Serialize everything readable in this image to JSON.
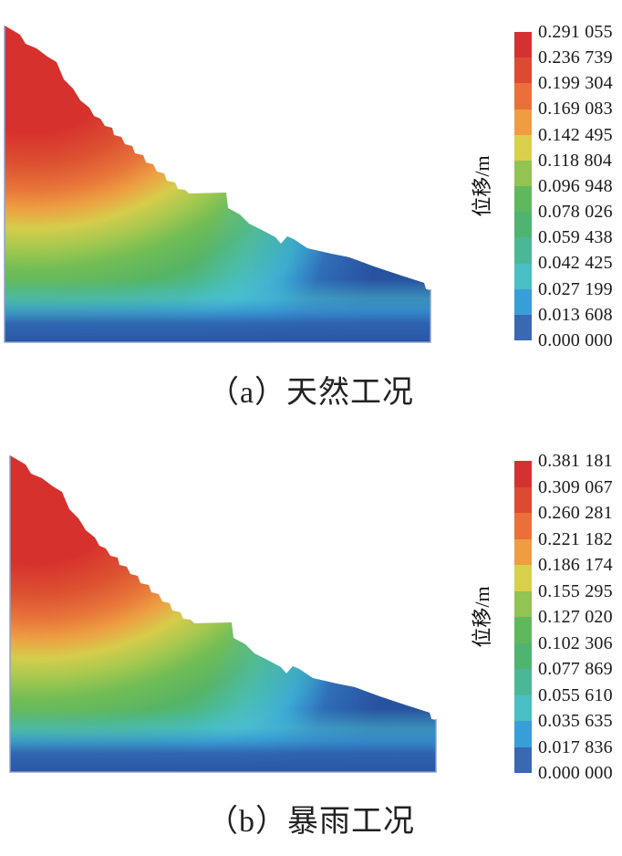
{
  "page": {
    "background": "#ffffff"
  },
  "figures": [
    {
      "id": "a",
      "caption": "（a）天然工况",
      "legend": {
        "axis_label": "位移/m",
        "ticks": [
          "0.291 055",
          "0.236 739",
          "0.199 304",
          "0.169 083",
          "0.142 495",
          "0.118 804",
          "0.096 948",
          "0.078 026",
          "0.059 438",
          "0.042 425",
          "0.027 199",
          "0.013 608",
          "0.000 000"
        ],
        "band_colors": [
          "#d23330",
          "#dc4a31",
          "#e97039",
          "#f09c42",
          "#d8d04b",
          "#93c351",
          "#60b85c",
          "#4fb46f",
          "#4ab896",
          "#49bfc6",
          "#379fd8",
          "#3a68b2"
        ]
      }
    },
    {
      "id": "b",
      "caption": "（b）暴雨工况",
      "legend": {
        "axis_label": "位移/m",
        "ticks": [
          "0.381 181",
          "0.309 067",
          "0.260 281",
          "0.221 182",
          "0.186 174",
          "0.155 295",
          "0.127 020",
          "0.102 306",
          "0.077 869",
          "0.055 610",
          "0.035 635",
          "0.017 836",
          "0.000 000"
        ],
        "band_colors": [
          "#d23330",
          "#dc4a31",
          "#e97039",
          "#f09c42",
          "#d8d04b",
          "#93c351",
          "#60b85c",
          "#4fb46f",
          "#4ab896",
          "#49bfc6",
          "#379fd8",
          "#3a68b2"
        ]
      }
    }
  ],
  "chart_data": [
    {
      "type": "heatmap",
      "subtype": "contour-fill",
      "title": "（a）天然工况",
      "field_label": "位移/m",
      "levels": [
        0.291055,
        0.236739,
        0.199304,
        0.169083,
        0.142495,
        0.118804,
        0.096948,
        0.078026,
        0.059438,
        0.042425,
        0.027199,
        0.013608,
        0.0
      ],
      "level_colors": [
        "#d23330",
        "#dc4a31",
        "#e97039",
        "#f09c42",
        "#d8d04b",
        "#93c351",
        "#60b85c",
        "#4fb46f",
        "#4ab896",
        "#49bfc6",
        "#379fd8",
        "#3a68b2"
      ],
      "legend_position": "right",
      "value_range": [
        0.0,
        0.291055
      ],
      "description": "Displacement-magnitude contour field of a stepped slope cross-section under natural conditions: maximum (red, 0.291 m) at the upper-left crest, decreasing through orange, yellow, green and cyan to zero (blue) along the base and right toe."
    },
    {
      "type": "heatmap",
      "subtype": "contour-fill",
      "title": "（b）暴雨工况",
      "field_label": "位移/m",
      "levels": [
        0.381181,
        0.309067,
        0.260281,
        0.221182,
        0.186174,
        0.155295,
        0.12702,
        0.102306,
        0.077869,
        0.05561,
        0.035635,
        0.017836,
        0.0
      ],
      "level_colors": [
        "#d23330",
        "#dc4a31",
        "#e97039",
        "#f09c42",
        "#d8d04b",
        "#93c351",
        "#60b85c",
        "#4fb46f",
        "#4ab896",
        "#49bfc6",
        "#379fd8",
        "#3a68b2"
      ],
      "legend_position": "right",
      "value_range": [
        0.0,
        0.381181
      ],
      "description": "Displacement-magnitude contour field of the same stepped slope under rainstorm conditions: maximum (red, 0.381 m) at the upper-left crest, decreasing to zero (blue) along the base and right toe."
    }
  ]
}
